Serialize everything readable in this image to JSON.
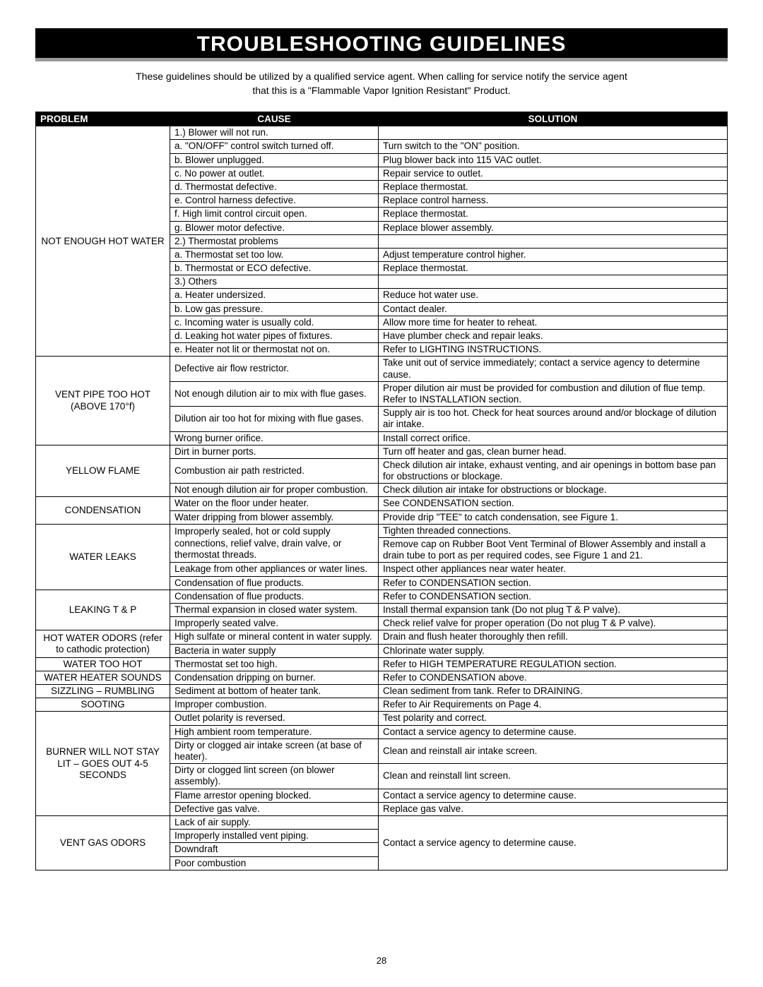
{
  "page_number": "28",
  "banner_title": "TROUBLESHOOTING GUIDELINES",
  "intro_line1": "These guidelines should be utilized by a qualified service agent. When calling for service notify the service agent",
  "intro_line2": "that this is a \"Flammable Vapor Ignition Resistant\" Product.",
  "headers": {
    "problem": "PROBLEM",
    "cause": "CAUSE",
    "solution": "SOLUTION"
  },
  "sections": [
    {
      "problem": "NOT ENOUGH HOT WATER",
      "rows": [
        {
          "cause": "1.) Blower will not run.",
          "solution": ""
        },
        {
          "cause": "a. \"ON/OFF\" control switch turned off.",
          "solution": "Turn switch to the \"ON\" position."
        },
        {
          "cause": "b. Blower unplugged.",
          "solution": "Plug blower back into 115 VAC outlet."
        },
        {
          "cause": "c. No power at outlet.",
          "solution": "Repair service to outlet."
        },
        {
          "cause": "d. Thermostat defective.",
          "solution": "Replace thermostat."
        },
        {
          "cause": "e. Control harness defective.",
          "solution": "Replace control harness."
        },
        {
          "cause": "f. High limit control circuit open.",
          "solution": "Replace thermostat."
        },
        {
          "cause": "g. Blower motor defective.",
          "solution": "Replace blower assembly."
        },
        {
          "cause": "2.) Thermostat problems",
          "solution": ""
        },
        {
          "cause": "a. Thermostat set too low.",
          "solution": "Adjust temperature control higher."
        },
        {
          "cause": "b. Thermostat or ECO defective.",
          "solution": "Replace thermostat."
        },
        {
          "cause": "3.) Others",
          "solution": ""
        },
        {
          "cause": "a. Heater undersized.",
          "solution": "Reduce hot water use."
        },
        {
          "cause": "b. Low gas pressure.",
          "solution": "Contact dealer."
        },
        {
          "cause": "c. Incoming water is usually cold.",
          "solution": "Allow more time for heater to reheat."
        },
        {
          "cause": "d. Leaking hot water pipes of fixtures.",
          "solution": "Have plumber check and repair leaks."
        },
        {
          "cause": "e. Heater not lit or thermostat not on.",
          "solution": "Refer to LIGHTING INSTRUCTIONS."
        }
      ]
    },
    {
      "problem": "VENT PIPE TOO HOT (ABOVE 170°f)",
      "rows": [
        {
          "cause": "Defective air flow restrictor.",
          "solution": "Take unit out of service immediately; contact a service agency to determine cause."
        },
        {
          "cause": "Not enough dilution air to mix with flue gases.",
          "solution": "Proper dilution air must be provided for combustion and dilution of flue temp. Refer to INSTALLATION section."
        },
        {
          "cause": "Dilution air too hot for mixing with flue gases.",
          "solution": "Supply air is too hot. Check for heat sources around and/or blockage of dilution air intake."
        },
        {
          "cause": "Wrong burner orifice.",
          "solution": "Install correct orifice."
        }
      ]
    },
    {
      "problem": "YELLOW FLAME",
      "rows": [
        {
          "cause": "Dirt in burner ports.",
          "solution": "Turn off heater and gas, clean burner head."
        },
        {
          "cause": "Combustion air path restricted.",
          "solution": "Check dilution air intake, exhaust venting, and air openings in bottom base pan for obstructions or blockage."
        },
        {
          "cause": "Not enough dilution air for proper combustion.",
          "solution": "Check dilution air intake for obstructions or blockage."
        }
      ]
    },
    {
      "problem": "CONDENSATION",
      "rows": [
        {
          "cause": "Water on the floor under heater.",
          "solution": "See CONDENSATION section."
        },
        {
          "cause": "Water dripping from blower assembly.",
          "solution": "Provide drip \"TEE\" to catch condensation, see Figure 1."
        }
      ]
    },
    {
      "problem": "LEAKING T & P",
      "rows": [
        {
          "cause": "Condensation of flue products.",
          "solution": "Refer to CONDENSATION section."
        },
        {
          "cause": "Thermal expansion in closed water system.",
          "solution": "Install thermal expansion tank (Do not plug T & P valve)."
        },
        {
          "cause": "Improperly seated valve.",
          "solution": "Check relief valve for proper operation (Do not plug T & P valve)."
        }
      ]
    },
    {
      "problem": "HOT WATER ODORS (refer to cathodic protection)",
      "rows": [
        {
          "cause": "High sulfate or mineral content in water supply.",
          "solution": "Drain and flush heater thoroughly then refill."
        },
        {
          "cause": "Bacteria in water supply",
          "solution": "Chlorinate water supply."
        }
      ]
    },
    {
      "problem": "WATER TOO HOT",
      "rows": [
        {
          "cause": "Thermostat set too high.",
          "solution": "Refer to HIGH TEMPERATURE REGULATION section."
        }
      ]
    },
    {
      "problem": "WATER HEATER SOUNDS",
      "rows": [
        {
          "cause": "Condensation dripping on burner.",
          "solution": "Refer to CONDENSATION above."
        }
      ]
    },
    {
      "problem": "SIZZLING – RUMBLING",
      "rows": [
        {
          "cause": "Sediment at bottom of heater tank.",
          "solution": "Clean sediment from tank. Refer to DRAINING."
        }
      ]
    },
    {
      "problem": "SOOTING",
      "rows": [
        {
          "cause": "Improper combustion.",
          "solution": "Refer to Air Requirements on Page 4."
        }
      ]
    },
    {
      "problem": "BURNER WILL NOT STAY LIT – GOES OUT 4-5 SECONDS",
      "rows": [
        {
          "cause": "Outlet polarity is reversed.",
          "solution": "Test polarity and correct."
        },
        {
          "cause": "High ambient room temperature.",
          "solution": "Contact a service agency to determine cause."
        },
        {
          "cause": "Dirty or clogged air intake screen (at base of heater).",
          "solution": "Clean and reinstall air intake screen."
        },
        {
          "cause": "Dirty or clogged lint screen (on blower assembly).",
          "solution": "Clean and reinstall lint screen."
        },
        {
          "cause": "Flame arrestor opening blocked.",
          "solution": "Contact a service agency to determine cause."
        },
        {
          "cause": "Defective gas valve.",
          "solution": "Replace gas valve."
        }
      ]
    }
  ],
  "water_leaks": {
    "problem": "WATER LEAKS",
    "cause1": "Improperly sealed, hot or cold supply connections, relief valve, drain valve, or thermostat threads.",
    "sol1a": "Tighten threaded connections.",
    "sol1b": "Remove cap on Rubber Boot Vent Terminal of Blower Assembly and install a drain tube to port as per required codes, see Figure 1 and 21.",
    "cause2": "Leakage from other appliances or water lines.",
    "sol2": "Inspect other appliances near water heater.",
    "cause3": "Condensation of flue products.",
    "sol3": "Refer to CONDENSATION section."
  },
  "vent_gas": {
    "problem": "VENT GAS ODORS",
    "causes": [
      "Lack of air supply.",
      "Improperly installed vent piping.",
      "Downdraft",
      "Poor combustion"
    ],
    "solution": "Contact a service agency to determine cause."
  },
  "style": {
    "banner_bg": "#000000",
    "banner_border": "#999999",
    "text_color": "#000000",
    "page_bg": "#ffffff",
    "header_bg": "#000000",
    "header_fg": "#ffffff",
    "font_family": "Arial, Helvetica, sans-serif",
    "banner_fontsize": 30,
    "body_fontsize": 13.5
  }
}
